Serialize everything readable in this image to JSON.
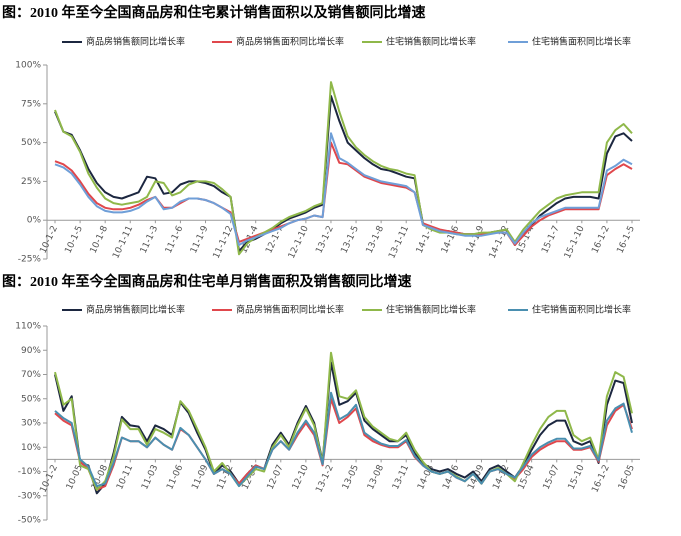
{
  "chart_data": [
    {
      "type": "line",
      "title": "图：2010 年至今全国商品房和住宅累计销售面积以及销售额同比增速",
      "categories": [
        "10-1-2",
        null,
        null,
        "10-1-5",
        null,
        null,
        "10-1-8",
        null,
        null,
        "10-1-11",
        null,
        null,
        "11-1-3",
        null,
        null,
        "11-1-6",
        null,
        null,
        "11-1-9",
        null,
        null,
        "11-1-12",
        null,
        null,
        "12-1-4",
        null,
        null,
        "12-1-7",
        null,
        null,
        "12-1-10",
        null,
        null,
        "13-1-2",
        null,
        null,
        "13-1-5",
        null,
        null,
        "13-1-8",
        null,
        null,
        "13-1-11",
        null,
        null,
        "14-1-3",
        null,
        null,
        "14-1-6",
        null,
        null,
        "14-1-9",
        null,
        null,
        "14-1-12",
        null,
        null,
        "15-1-4",
        null,
        null,
        "15-1-7",
        null,
        null,
        "15-1-10",
        null,
        null,
        "16-1-2",
        null,
        null,
        "16-1-5"
      ],
      "series": [
        {
          "name": "商品房销售额同比增长率",
          "color": "#1c2740",
          "values": [
            70,
            57,
            55,
            45,
            33,
            24,
            18,
            15,
            14,
            16,
            18,
            28,
            27,
            17,
            18,
            23,
            25,
            25,
            24,
            22,
            18,
            15,
            -20,
            -14,
            -12,
            -9,
            -6,
            -2,
            1,
            3,
            5,
            8,
            10,
            80,
            64,
            50,
            45,
            40,
            36,
            33,
            32,
            30,
            28,
            27,
            -2,
            -5,
            -7,
            -7,
            -8,
            -9,
            -9,
            -9,
            -8,
            -7,
            -6,
            -16,
            -9,
            -3,
            3,
            7,
            11,
            14,
            15,
            15,
            15,
            14,
            43,
            54,
            56,
            51
          ]
        },
        {
          "name": "商品房销售面积同比增长率",
          "color": "#e0474c",
          "values": [
            38,
            36,
            32,
            25,
            17,
            11,
            8,
            7,
            7,
            8,
            10,
            13,
            15,
            8,
            8,
            11,
            14,
            14,
            13,
            11,
            8,
            5,
            -14,
            -12,
            -10,
            -8,
            -6,
            -4,
            -2,
            0,
            1,
            3,
            2,
            50,
            37,
            36,
            32,
            28,
            26,
            24,
            23,
            22,
            21,
            18,
            -2,
            -4,
            -6,
            -7,
            -8,
            -9,
            -9,
            -9,
            -8,
            -8,
            -8,
            -16,
            -10,
            -4,
            0,
            3,
            5,
            7,
            7,
            7,
            7,
            7,
            29,
            33,
            36,
            33
          ]
        },
        {
          "name": "住宅销售额同比增长率",
          "color": "#8fb84a",
          "values": [
            71,
            57,
            54,
            44,
            30,
            21,
            14,
            11,
            10,
            11,
            12,
            15,
            25,
            24,
            16,
            18,
            23,
            25,
            25,
            24,
            20,
            15,
            -22,
            -15,
            -11,
            -8,
            -5,
            -1,
            2,
            4,
            6,
            9,
            11,
            89,
            70,
            54,
            47,
            42,
            38,
            35,
            33,
            32,
            30,
            29,
            -3,
            -6,
            -8,
            -8,
            -9,
            -9,
            -9,
            -8,
            -8,
            -7,
            -6,
            -14,
            -6,
            0,
            6,
            10,
            14,
            16,
            17,
            18,
            18,
            18,
            50,
            58,
            62,
            56
          ]
        },
        {
          "name": "住宅销售面积同比增长率",
          "color": "#6f9fd8",
          "values": [
            36,
            34,
            30,
            23,
            15,
            9,
            6,
            5,
            5,
            6,
            8,
            12,
            15,
            7,
            8,
            12,
            14,
            14,
            13,
            11,
            8,
            4,
            -16,
            -13,
            -11,
            -9,
            -7,
            -5,
            -2,
            0,
            1,
            3,
            2,
            56,
            40,
            37,
            33,
            29,
            27,
            25,
            24,
            23,
            22,
            18,
            -3,
            -5,
            -7,
            -8,
            -9,
            -10,
            -10,
            -10,
            -9,
            -8,
            -8,
            -15,
            -8,
            -2,
            2,
            4,
            6,
            8,
            8,
            8,
            8,
            8,
            32,
            35,
            39,
            36
          ]
        }
      ],
      "ylim": [
        -25,
        100
      ],
      "yticks": [
        {
          "value": -25,
          "label": "-25%"
        },
        {
          "value": 0,
          "label": "0%"
        },
        {
          "value": 25,
          "label": "25%"
        },
        {
          "value": 50,
          "label": "50%"
        },
        {
          "value": 75,
          "label": "75%"
        },
        {
          "value": 100,
          "label": "100%"
        }
      ],
      "grid": false,
      "legend": "top"
    },
    {
      "type": "line",
      "title": "图：2010 年至今全国商品房和住宅单月销售面积及销售额同比增速",
      "categories": [
        "10-1-2",
        null,
        null,
        "10-05",
        null,
        null,
        "10-08",
        null,
        null,
        "10-11",
        null,
        null,
        "11-03",
        null,
        null,
        "11-06",
        null,
        null,
        "11-09",
        null,
        null,
        "11-12",
        null,
        null,
        "12-04",
        null,
        null,
        "12-07",
        null,
        null,
        "12-10",
        null,
        null,
        "13-1-2",
        null,
        null,
        "13-05",
        null,
        null,
        "13-08",
        null,
        null,
        "13-11",
        null,
        null,
        "14-03",
        null,
        null,
        "14-06",
        null,
        null,
        "14-09",
        null,
        null,
        "14-12",
        null,
        null,
        "15-04",
        null,
        null,
        "15-07",
        null,
        null,
        "15-10",
        null,
        null,
        "16-1-2",
        null,
        null,
        "16-05"
      ],
      "series": [
        {
          "name": "商品房销售额同比增长率",
          "color": "#1c2740",
          "values": [
            70,
            40,
            52,
            -3,
            -5,
            -28,
            -20,
            5,
            35,
            28,
            27,
            15,
            28,
            25,
            20,
            47,
            38,
            22,
            8,
            -12,
            -5,
            -10,
            -20,
            -12,
            -5,
            -8,
            12,
            22,
            12,
            30,
            44,
            30,
            -2,
            80,
            45,
            48,
            55,
            32,
            25,
            20,
            15,
            15,
            20,
            5,
            -3,
            -8,
            -10,
            -8,
            -12,
            -15,
            -10,
            -18,
            -8,
            -5,
            -10,
            -15,
            -5,
            8,
            20,
            28,
            32,
            32,
            15,
            12,
            15,
            -3,
            45,
            65,
            63,
            30
          ]
        },
        {
          "name": "商品房销售面积同比增长率",
          "color": "#e0474c",
          "values": [
            38,
            32,
            28,
            -2,
            -8,
            -25,
            -22,
            -5,
            18,
            15,
            15,
            10,
            18,
            12,
            8,
            25,
            20,
            10,
            0,
            -12,
            -8,
            -12,
            -20,
            -12,
            -5,
            -8,
            8,
            15,
            8,
            20,
            30,
            20,
            -5,
            50,
            30,
            35,
            42,
            20,
            15,
            12,
            10,
            10,
            15,
            2,
            -5,
            -10,
            -12,
            -10,
            -15,
            -18,
            -12,
            -20,
            -10,
            -8,
            -12,
            -16,
            -8,
            2,
            8,
            12,
            15,
            15,
            8,
            8,
            10,
            -2,
            28,
            40,
            45,
            25
          ]
        },
        {
          "name": "住宅销售额同比增长率",
          "color": "#8fb84a",
          "values": [
            72,
            45,
            50,
            -5,
            -8,
            -25,
            -18,
            2,
            33,
            25,
            25,
            12,
            25,
            22,
            18,
            48,
            40,
            25,
            10,
            -10,
            -3,
            -12,
            -22,
            -15,
            -8,
            -10,
            10,
            20,
            10,
            28,
            42,
            28,
            -3,
            88,
            52,
            50,
            57,
            35,
            27,
            22,
            17,
            15,
            22,
            8,
            -2,
            -10,
            -12,
            -10,
            -14,
            -18,
            -12,
            -20,
            -10,
            -7,
            -12,
            -18,
            -3,
            12,
            25,
            35,
            40,
            40,
            20,
            15,
            18,
            0,
            52,
            72,
            68,
            38
          ]
        },
        {
          "name": "住宅销售面积同比增长率",
          "color": "#4a8fb0",
          "values": [
            40,
            34,
            30,
            0,
            -6,
            -22,
            -20,
            -3,
            18,
            15,
            15,
            10,
            18,
            12,
            8,
            26,
            20,
            10,
            0,
            -12,
            -8,
            -12,
            -22,
            -14,
            -6,
            -8,
            8,
            15,
            8,
            22,
            32,
            22,
            -4,
            55,
            33,
            37,
            45,
            22,
            17,
            13,
            11,
            11,
            16,
            3,
            -5,
            -10,
            -12,
            -10,
            -15,
            -18,
            -12,
            -20,
            -10,
            -8,
            -12,
            -15,
            -6,
            4,
            10,
            14,
            17,
            17,
            9,
            9,
            11,
            -1,
            32,
            42,
            46,
            22
          ]
        }
      ],
      "ylim": [
        -50,
        110
      ],
      "yticks": [
        {
          "value": -50,
          "label": "-50%"
        },
        {
          "value": -30,
          "label": "-30%"
        },
        {
          "value": -10,
          "label": "-10%"
        },
        {
          "value": 10,
          "label": "10%"
        },
        {
          "value": 30,
          "label": "30%"
        },
        {
          "value": 50,
          "label": "50%"
        },
        {
          "value": 70,
          "label": "70%"
        },
        {
          "value": 90,
          "label": "90%"
        },
        {
          "value": 110,
          "label": "110%"
        }
      ],
      "grid": false,
      "legend": "top"
    }
  ]
}
